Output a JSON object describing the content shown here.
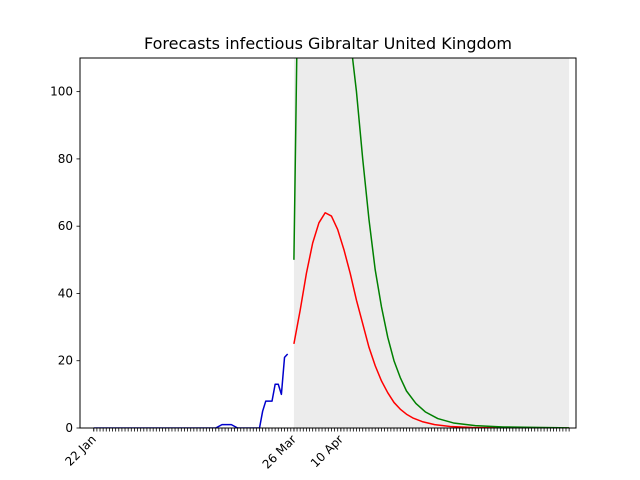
{
  "chart_data": {
    "type": "line",
    "title": "Forecasts infectious Gibraltar United Kingdom",
    "xlabel": "",
    "ylabel": "",
    "x_start": "2020-01-22",
    "x_end": "2020-06-22",
    "ylim": [
      0,
      110
    ],
    "y_ticks": [
      0,
      20,
      40,
      60,
      80,
      100
    ],
    "x_tick_labels": [
      {
        "date": "2020-01-22",
        "label": "22 Jan"
      },
      {
        "date": "2020-03-26",
        "label": "26 Mar"
      },
      {
        "date": "2020-04-10",
        "label": "10 Apr"
      }
    ],
    "grid": false,
    "legend": "none",
    "forecast_band": {
      "x_start": "2020-03-26",
      "x_end": "2020-06-22",
      "color": "#ececec"
    },
    "series": [
      {
        "role": "observed",
        "color": "#0000cc",
        "points": [
          [
            "2020-01-22",
            0
          ],
          [
            "2020-02-01",
            0
          ],
          [
            "2020-02-15",
            0
          ],
          [
            "2020-03-01",
            0
          ],
          [
            "2020-03-03",
            1
          ],
          [
            "2020-03-06",
            1
          ],
          [
            "2020-03-08",
            0
          ],
          [
            "2020-03-15",
            0
          ],
          [
            "2020-03-16",
            5
          ],
          [
            "2020-03-17",
            8
          ],
          [
            "2020-03-18",
            8
          ],
          [
            "2020-03-19",
            8
          ],
          [
            "2020-03-20",
            13
          ],
          [
            "2020-03-21",
            13
          ],
          [
            "2020-03-22",
            10
          ],
          [
            "2020-03-23",
            21
          ],
          [
            "2020-03-24",
            22
          ]
        ]
      },
      {
        "role": "forecast-median",
        "color": "#ff0000",
        "points": [
          [
            "2020-03-26",
            25
          ],
          [
            "2020-03-28",
            35
          ],
          [
            "2020-03-30",
            46
          ],
          [
            "2020-04-01",
            55
          ],
          [
            "2020-04-03",
            61
          ],
          [
            "2020-04-05",
            64
          ],
          [
            "2020-04-07",
            63
          ],
          [
            "2020-04-09",
            59
          ],
          [
            "2020-04-11",
            53
          ],
          [
            "2020-04-13",
            46
          ],
          [
            "2020-04-15",
            38
          ],
          [
            "2020-04-17",
            31
          ],
          [
            "2020-04-19",
            24
          ],
          [
            "2020-04-21",
            18.5
          ],
          [
            "2020-04-23",
            14
          ],
          [
            "2020-04-25",
            10.5
          ],
          [
            "2020-04-27",
            7.6
          ],
          [
            "2020-04-29",
            5.6
          ],
          [
            "2020-05-01",
            4.1
          ],
          [
            "2020-05-03",
            3.0
          ],
          [
            "2020-05-06",
            1.9
          ],
          [
            "2020-05-10",
            1.0
          ],
          [
            "2020-05-15",
            0.45
          ],
          [
            "2020-05-22",
            0.15
          ],
          [
            "2020-06-01",
            0.05
          ],
          [
            "2020-06-22",
            0
          ]
        ]
      },
      {
        "role": "forecast-upper",
        "color": "#008000",
        "points": [
          [
            "2020-03-26",
            50
          ],
          [
            "2020-03-27",
            116
          ],
          [
            "2020-04-01",
            200
          ],
          [
            "2020-04-08",
            200
          ],
          [
            "2020-04-13",
            116
          ],
          [
            "2020-04-15",
            100
          ],
          [
            "2020-04-17",
            80
          ],
          [
            "2020-04-19",
            62
          ],
          [
            "2020-04-21",
            47
          ],
          [
            "2020-04-23",
            36
          ],
          [
            "2020-04-25",
            27
          ],
          [
            "2020-04-27",
            20
          ],
          [
            "2020-04-29",
            15
          ],
          [
            "2020-05-01",
            11
          ],
          [
            "2020-05-04",
            7.3
          ],
          [
            "2020-05-07",
            4.8
          ],
          [
            "2020-05-11",
            2.8
          ],
          [
            "2020-05-16",
            1.5
          ],
          [
            "2020-05-23",
            0.7
          ],
          [
            "2020-06-01",
            0.3
          ],
          [
            "2020-06-22",
            0.05
          ]
        ]
      }
    ]
  }
}
